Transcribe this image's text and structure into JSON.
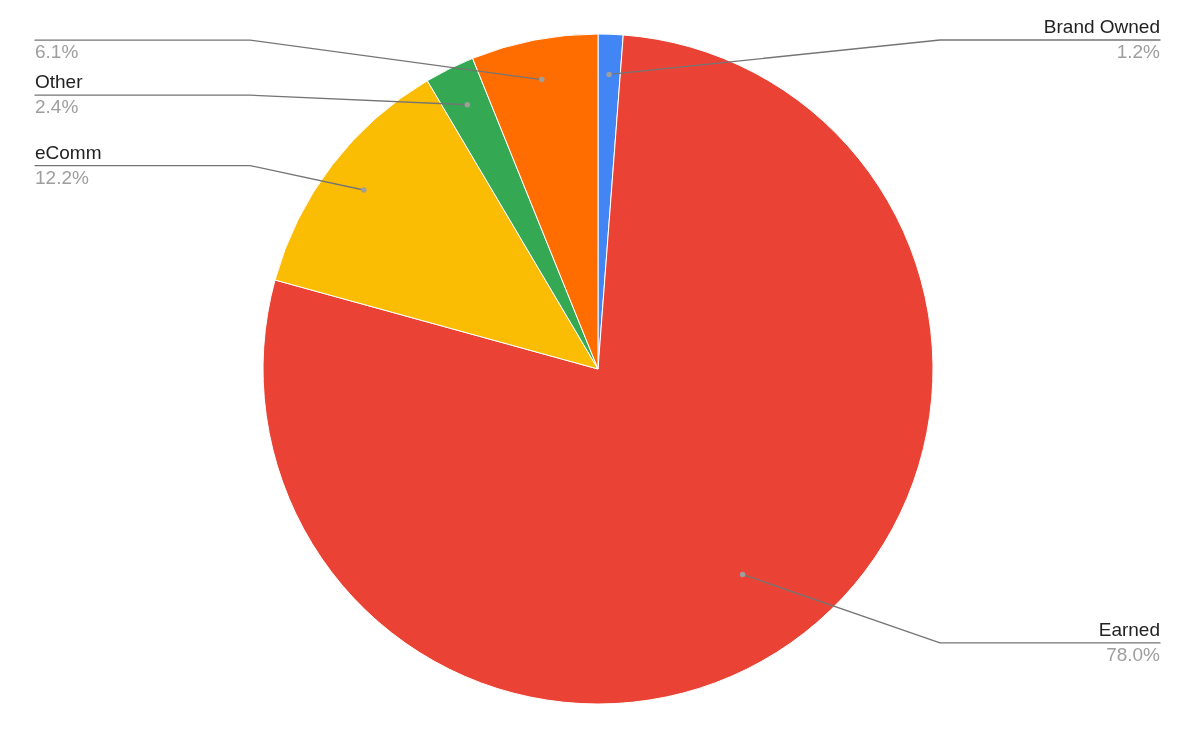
{
  "chart_data": {
    "type": "pie",
    "categories": [
      "Brand Owned",
      "Earned",
      "eComm",
      "Other",
      null
    ],
    "values": [
      1.2,
      78.0,
      12.2,
      2.4,
      6.1
    ],
    "colors": [
      "#4285f4",
      "#ea4335",
      "#fbbc04",
      "#34a853",
      "#ff6d01"
    ],
    "value_labels": [
      "1.2%",
      "78.0%",
      "12.2%",
      "2.4%",
      "6.1%"
    ]
  }
}
